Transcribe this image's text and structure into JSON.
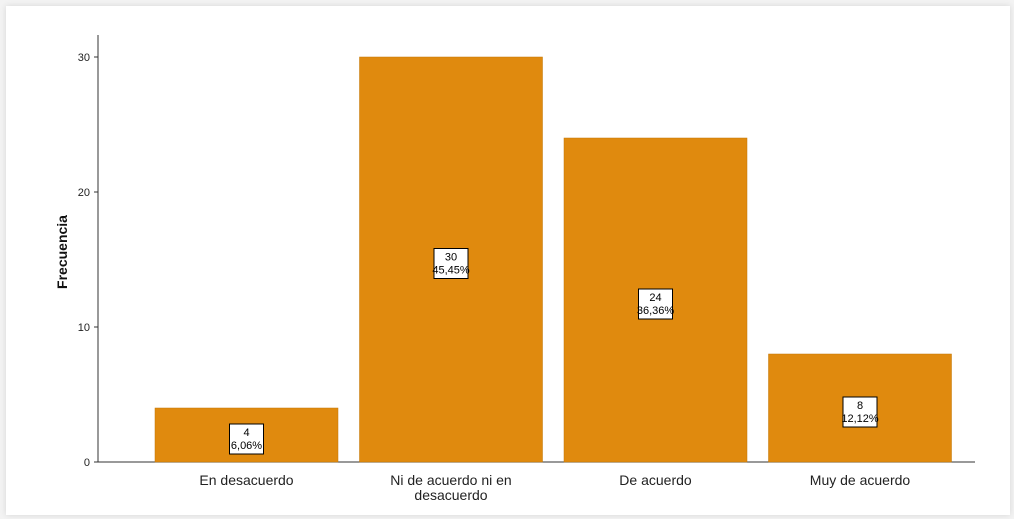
{
  "chart_data": {
    "type": "bar",
    "categories": [
      [
        "En desacuerdo"
      ],
      [
        "Ni de acuerdo ni en",
        "desacuerdo"
      ],
      [
        "De acuerdo"
      ],
      [
        "Muy de acuerdo"
      ]
    ],
    "values": [
      4,
      30,
      24,
      8
    ],
    "percent_labels": [
      "6,06%",
      "45,45%",
      "36,36%",
      "12,12%"
    ],
    "ylabel": "Frecuencia",
    "ylim": [
      0,
      30
    ],
    "yticks": [
      0,
      10,
      20,
      30
    ],
    "bar_color": "#e08a0e",
    "grid": false
  }
}
